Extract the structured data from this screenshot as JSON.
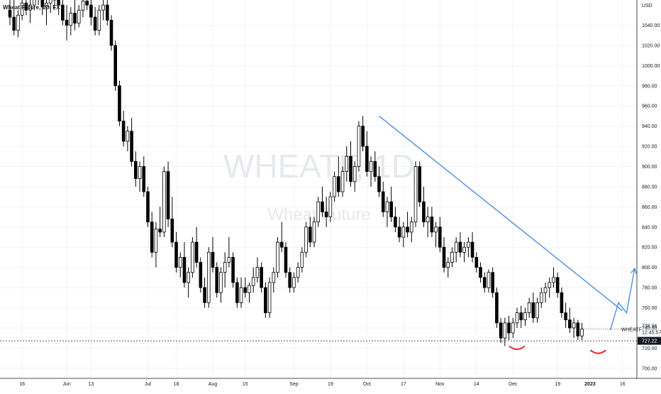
{
  "header": {
    "title": "Wheat Future, 1D, FX",
    "unit": "USD"
  },
  "watermark": {
    "symbol": "WHEATF, 1D",
    "name": "Wheat Future"
  },
  "colors": {
    "up": "#ffffff",
    "down": "#000000",
    "outline": "#000000",
    "trendline": "#4a90e2",
    "arc": "#e03030",
    "grid": "#f0f3fa",
    "axis_line": "#131722"
  },
  "chart_data": {
    "type": "candlestick",
    "title": "Wheat Future, 1D, FX",
    "ylabel": "USD",
    "ylim": [
      690,
      1065
    ],
    "y_ticks": [
      700,
      720,
      740,
      760,
      780,
      800,
      820,
      840,
      860,
      880,
      900,
      920,
      940,
      960,
      980,
      1000,
      1020,
      1040
    ],
    "x_ticks": [
      {
        "label": "16",
        "index": 3
      },
      {
        "label": "Jun",
        "index": 14
      },
      {
        "label": "13",
        "index": 20
      },
      {
        "label": "Jul",
        "index": 34
      },
      {
        "label": "18",
        "index": 41
      },
      {
        "label": "Aug",
        "index": 50
      },
      {
        "label": "15",
        "index": 58
      },
      {
        "label": "Sep",
        "index": 70
      },
      {
        "label": "19",
        "index": 79
      },
      {
        "label": "Oct",
        "index": 88
      },
      {
        "label": "17",
        "index": 97
      },
      {
        "label": "Nov",
        "index": 106
      },
      {
        "label": "14",
        "index": 115
      },
      {
        "label": "Dec",
        "index": 124
      },
      {
        "label": "19",
        "index": 135
      },
      {
        "label": "2023",
        "index": 143,
        "bold": true
      },
      {
        "label": "16",
        "index": 151
      }
    ],
    "candles": [
      [
        1055,
        1068,
        1040,
        1048
      ],
      [
        1048,
        1065,
        1030,
        1035
      ],
      [
        1035,
        1055,
        1028,
        1050
      ],
      [
        1050,
        1070,
        1045,
        1062
      ],
      [
        1062,
        1075,
        1050,
        1055
      ],
      [
        1055,
        1068,
        1042,
        1060
      ],
      [
        1060,
        1080,
        1055,
        1072
      ],
      [
        1072,
        1085,
        1060,
        1068
      ],
      [
        1068,
        1080,
        1050,
        1058
      ],
      [
        1058,
        1070,
        1040,
        1062
      ],
      [
        1062,
        1075,
        1052,
        1070
      ],
      [
        1070,
        1082,
        1055,
        1065
      ],
      [
        1065,
        1078,
        1050,
        1060
      ],
      [
        1060,
        1072,
        1040,
        1045
      ],
      [
        1045,
        1060,
        1025,
        1040
      ],
      [
        1040,
        1058,
        1030,
        1052
      ],
      [
        1052,
        1065,
        1035,
        1042
      ],
      [
        1042,
        1060,
        1038,
        1055
      ],
      [
        1055,
        1072,
        1048,
        1064
      ],
      [
        1064,
        1080,
        1055,
        1060
      ],
      [
        1060,
        1075,
        1040,
        1048
      ],
      [
        1048,
        1058,
        1030,
        1035
      ],
      [
        1035,
        1060,
        1030,
        1055
      ],
      [
        1055,
        1070,
        1045,
        1060
      ],
      [
        1060,
        1068,
        1040,
        1045
      ],
      [
        1045,
        1050,
        1015,
        1020
      ],
      [
        1020,
        1025,
        975,
        980
      ],
      [
        980,
        985,
        940,
        945
      ],
      [
        945,
        955,
        920,
        925
      ],
      [
        925,
        940,
        915,
        935
      ],
      [
        935,
        948,
        900,
        905
      ],
      [
        905,
        915,
        880,
        888
      ],
      [
        888,
        905,
        875,
        900
      ],
      [
        900,
        910,
        870,
        875
      ],
      [
        875,
        880,
        840,
        845
      ],
      [
        845,
        855,
        810,
        815
      ],
      [
        815,
        845,
        800,
        838
      ],
      [
        838,
        860,
        830,
        835
      ],
      [
        835,
        900,
        830,
        895
      ],
      [
        895,
        905,
        840,
        848
      ],
      [
        848,
        870,
        820,
        825
      ],
      [
        825,
        835,
        795,
        800
      ],
      [
        800,
        815,
        790,
        810
      ],
      [
        810,
        825,
        780,
        785
      ],
      [
        785,
        800,
        770,
        795
      ],
      [
        795,
        830,
        790,
        825
      ],
      [
        825,
        840,
        800,
        805
      ],
      [
        805,
        810,
        775,
        780
      ],
      [
        780,
        790,
        760,
        765
      ],
      [
        765,
        820,
        760,
        815
      ],
      [
        815,
        830,
        795,
        800
      ],
      [
        800,
        805,
        770,
        775
      ],
      [
        775,
        800,
        765,
        795
      ],
      [
        795,
        815,
        780,
        805
      ],
      [
        805,
        830,
        800,
        810
      ],
      [
        810,
        815,
        780,
        785
      ],
      [
        785,
        790,
        760,
        765
      ],
      [
        765,
        790,
        760,
        780
      ],
      [
        780,
        790,
        770,
        775
      ],
      [
        775,
        785,
        765,
        782
      ],
      [
        782,
        800,
        775,
        790
      ],
      [
        790,
        810,
        785,
        800
      ],
      [
        800,
        805,
        775,
        780
      ],
      [
        780,
        785,
        750,
        755
      ],
      [
        755,
        790,
        750,
        785
      ],
      [
        785,
        800,
        775,
        795
      ],
      [
        795,
        830,
        790,
        825
      ],
      [
        825,
        845,
        815,
        820
      ],
      [
        820,
        825,
        790,
        795
      ],
      [
        795,
        800,
        775,
        780
      ],
      [
        780,
        795,
        775,
        790
      ],
      [
        790,
        805,
        785,
        800
      ],
      [
        800,
        820,
        795,
        815
      ],
      [
        815,
        845,
        810,
        840
      ],
      [
        840,
        850,
        820,
        825
      ],
      [
        825,
        850,
        820,
        845
      ],
      [
        845,
        870,
        840,
        865
      ],
      [
        865,
        880,
        850,
        855
      ],
      [
        855,
        870,
        840,
        850
      ],
      [
        850,
        875,
        845,
        870
      ],
      [
        870,
        895,
        865,
        890
      ],
      [
        890,
        910,
        870,
        875
      ],
      [
        875,
        900,
        870,
        895
      ],
      [
        895,
        920,
        885,
        910
      ],
      [
        910,
        925,
        880,
        885
      ],
      [
        885,
        905,
        875,
        900
      ],
      [
        900,
        945,
        895,
        940
      ],
      [
        940,
        950,
        915,
        920
      ],
      [
        920,
        935,
        890,
        895
      ],
      [
        895,
        910,
        880,
        905
      ],
      [
        905,
        915,
        885,
        890
      ],
      [
        890,
        900,
        870,
        875
      ],
      [
        875,
        885,
        850,
        855
      ],
      [
        855,
        870,
        840,
        865
      ],
      [
        865,
        880,
        845,
        850
      ],
      [
        850,
        860,
        835,
        840
      ],
      [
        840,
        850,
        825,
        830
      ],
      [
        830,
        845,
        820,
        840
      ],
      [
        840,
        855,
        830,
        835
      ],
      [
        835,
        850,
        825,
        845
      ],
      [
        845,
        905,
        840,
        900
      ],
      [
        900,
        905,
        860,
        865
      ],
      [
        865,
        880,
        840,
        845
      ],
      [
        845,
        860,
        830,
        850
      ],
      [
        850,
        860,
        830,
        835
      ],
      [
        835,
        845,
        820,
        840
      ],
      [
        840,
        850,
        815,
        820
      ],
      [
        820,
        830,
        795,
        800
      ],
      [
        800,
        810,
        790,
        805
      ],
      [
        805,
        820,
        800,
        815
      ],
      [
        815,
        830,
        805,
        825
      ],
      [
        825,
        835,
        810,
        815
      ],
      [
        815,
        825,
        805,
        820
      ],
      [
        820,
        830,
        810,
        825
      ],
      [
        825,
        835,
        805,
        810
      ],
      [
        810,
        815,
        795,
        800
      ],
      [
        800,
        805,
        785,
        790
      ],
      [
        790,
        795,
        775,
        780
      ],
      [
        780,
        798,
        775,
        795
      ],
      [
        795,
        800,
        770,
        775
      ],
      [
        775,
        780,
        740,
        745
      ],
      [
        745,
        750,
        725,
        730
      ],
      [
        730,
        750,
        722,
        745
      ],
      [
        745,
        752,
        728,
        735
      ],
      [
        735,
        750,
        730,
        745
      ],
      [
        745,
        760,
        740,
        755
      ],
      [
        755,
        762,
        740,
        748
      ],
      [
        748,
        760,
        742,
        755
      ],
      [
        755,
        770,
        750,
        765
      ],
      [
        765,
        775,
        745,
        750
      ],
      [
        750,
        770,
        745,
        765
      ],
      [
        765,
        780,
        760,
        775
      ],
      [
        775,
        785,
        765,
        780
      ],
      [
        780,
        790,
        770,
        785
      ],
      [
        785,
        800,
        780,
        790
      ],
      [
        790,
        795,
        770,
        775
      ],
      [
        775,
        780,
        750,
        755
      ],
      [
        755,
        765,
        740,
        748
      ],
      [
        748,
        760,
        735,
        740
      ],
      [
        740,
        750,
        730,
        745
      ],
      [
        745,
        748,
        728,
        732
      ],
      [
        732,
        745,
        728,
        739
      ]
    ],
    "trendline": {
      "from": {
        "index": 91,
        "value": 950
      },
      "to": {
        "index": 151,
        "value": 757
      }
    },
    "projection": [
      {
        "index": 148,
        "value": 738
      },
      {
        "index": 150,
        "value": 765
      },
      {
        "index": 152,
        "value": 755
      },
      {
        "index": 154,
        "value": 799
      }
    ],
    "projection_label": "WHEATF",
    "current_price": {
      "value": 738.96,
      "label": "738.96",
      "countdown": "12:45:57"
    },
    "marked_price": {
      "value": 727.22,
      "label": "727.22"
    },
    "arcs": [
      {
        "index": 125,
        "value": 722
      },
      {
        "index": 145,
        "value": 718
      }
    ]
  }
}
